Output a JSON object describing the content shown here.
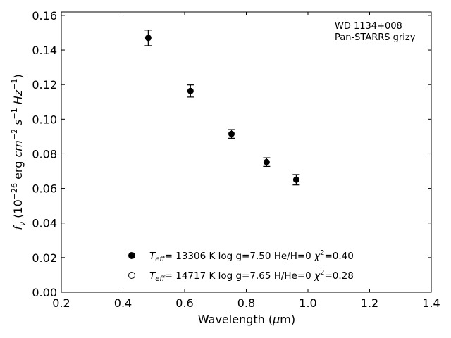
{
  "chart_data": {
    "type": "scatter",
    "title": "",
    "xlabel": {
      "main": "Wavelength (",
      "mu": "μ",
      "rest": "m)"
    },
    "ylabel": {
      "f": "f",
      "nu": "ν",
      "open": " (10",
      "exp1": "−26",
      "mid": " erg ",
      "cm": "cm",
      "exp2": "−2",
      "s": " s",
      "exp3": "−1",
      "hz": " Hz",
      "exp4": "−1",
      "close": ")"
    },
    "xlim": [
      0.2,
      1.4
    ],
    "ylim": [
      0.0,
      0.162
    ],
    "x_ticks": [
      "0.2",
      "0.4",
      "0.6",
      "0.8",
      "1.0",
      "1.2",
      "1.4"
    ],
    "y_ticks": [
      "0.00",
      "0.02",
      "0.04",
      "0.06",
      "0.08",
      "0.10",
      "0.12",
      "0.14",
      "0.16"
    ],
    "grid": false,
    "annotations": [
      "WD 1134+008",
      "Pan-STARRS grizy"
    ],
    "observed": {
      "x": [
        0.482,
        0.619,
        0.752,
        0.866,
        0.962
      ],
      "y": [
        0.147,
        0.1163,
        0.0915,
        0.0752,
        0.065
      ],
      "err": [
        0.0045,
        0.0035,
        0.0025,
        0.0025,
        0.003
      ]
    },
    "legend": {
      "placement": "lower-center",
      "entries": [
        {
          "marker": "filled-circle",
          "teff": "T",
          "teff_sub": "eff",
          "text": "= 13306 K  log g=7.50  He/H=0  ",
          "chi": "χ",
          "chi_sup": "2",
          "chi_val": "=0.40"
        },
        {
          "marker": "open-circle",
          "teff": "T",
          "teff_sub": "eff",
          "text": "= 14717 K  log g=7.65  H/He=0  ",
          "chi": "χ",
          "chi_sup": "2",
          "chi_val": "=0.28"
        }
      ]
    }
  }
}
